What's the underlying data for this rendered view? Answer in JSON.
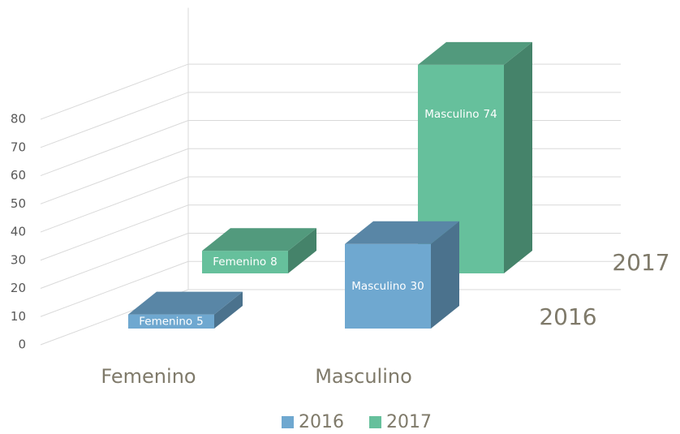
{
  "chart_data": {
    "type": "bar3d",
    "categories": [
      "Femenino",
      "Masculino"
    ],
    "series": [
      {
        "name": "2016",
        "color": "#6fa8d0",
        "values": [
          5,
          30
        ]
      },
      {
        "name": "2017",
        "color": "#66c09c",
        "values": [
          8,
          74
        ]
      }
    ],
    "ylim": [
      0,
      100
    ],
    "yticks": [
      0,
      10,
      20,
      30,
      40,
      50,
      60,
      70,
      80
    ],
    "grid": true,
    "legend": "bottom"
  }
}
